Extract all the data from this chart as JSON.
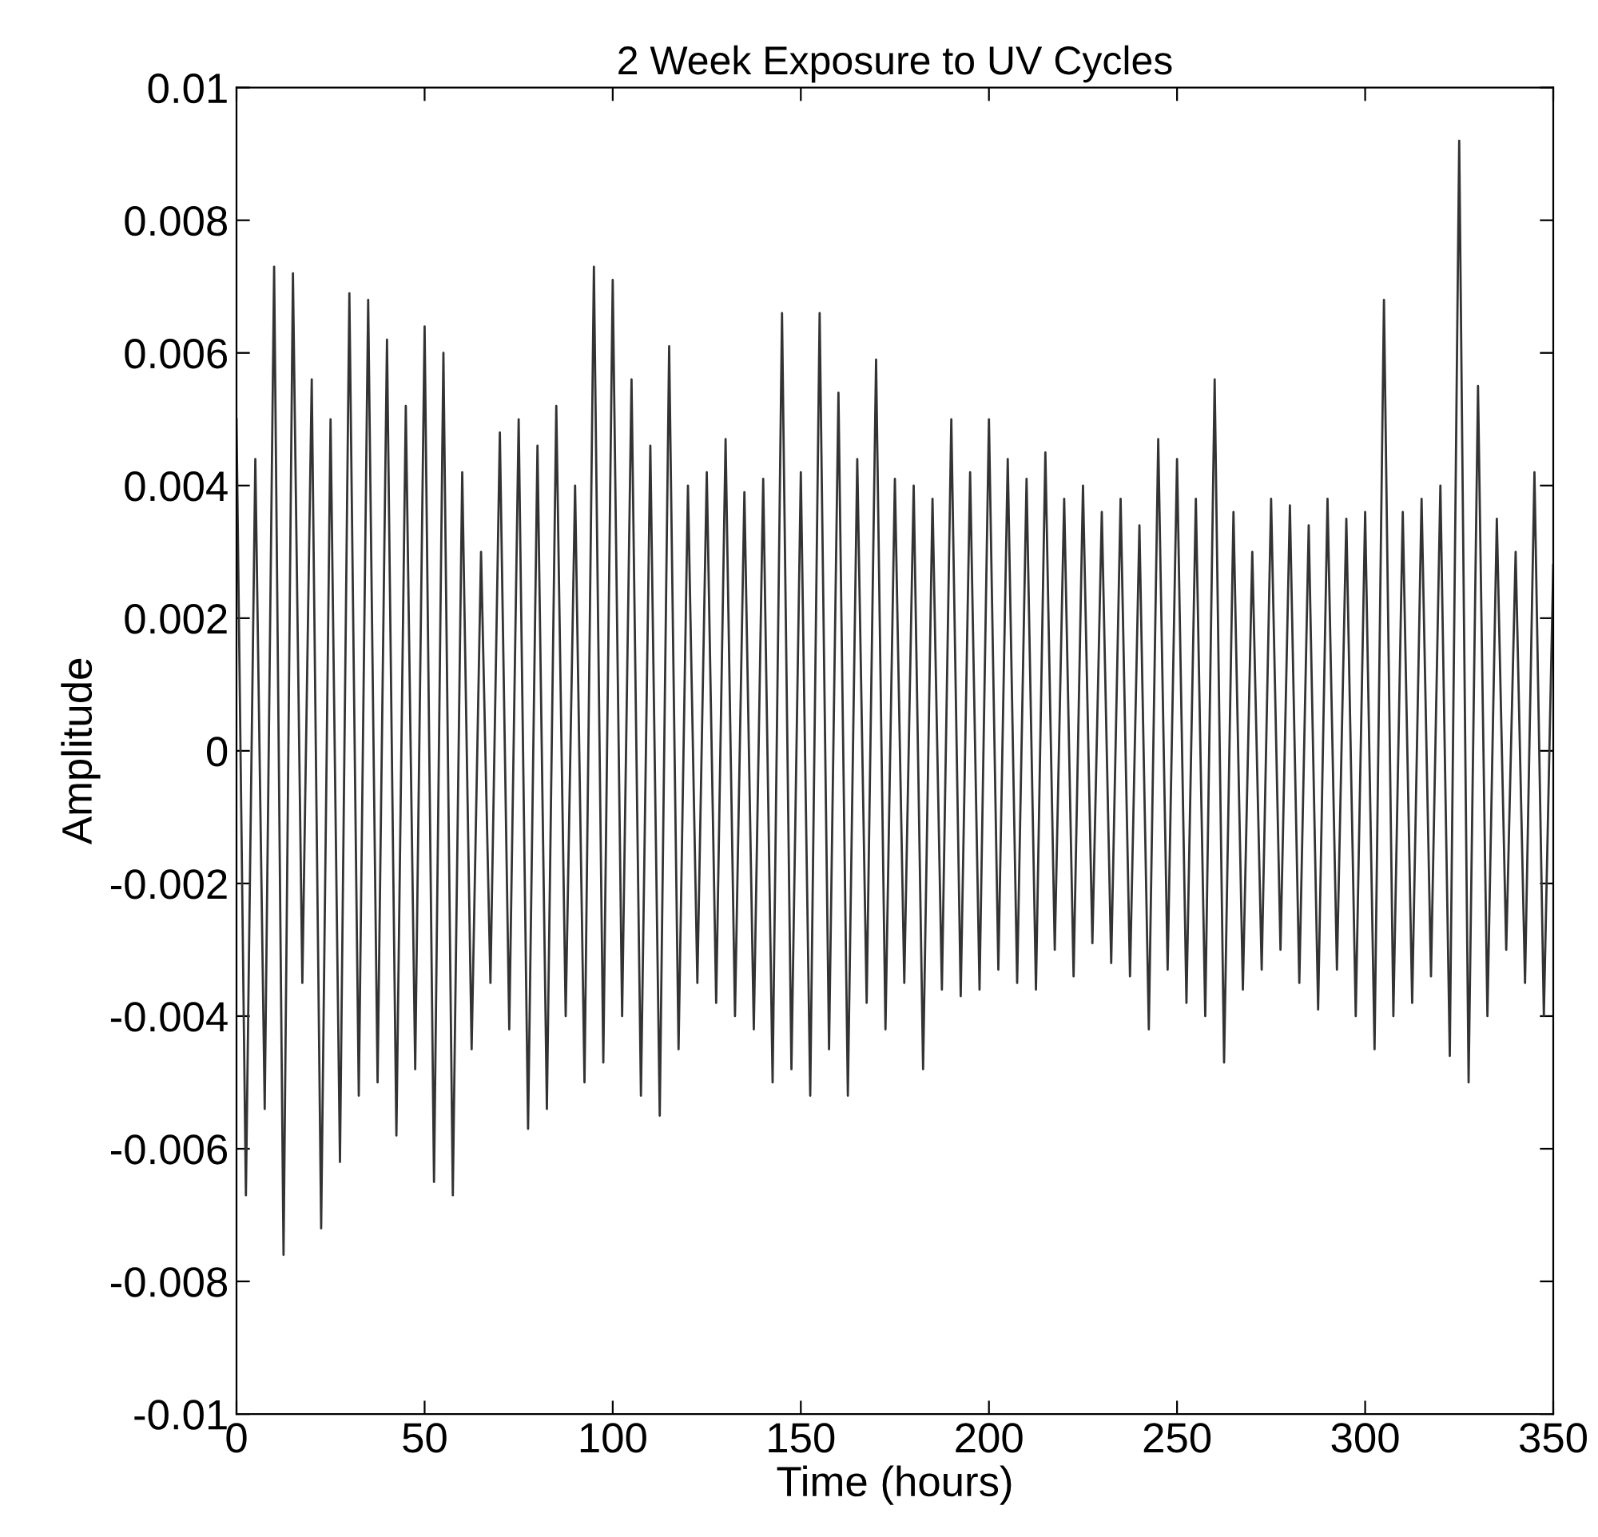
{
  "chart_data": {
    "type": "line",
    "title": "2 Week Exposure to UV Cycles",
    "xlabel": "Time (hours)",
    "ylabel": "Amplitude",
    "x": [
      0,
      2.5,
      5,
      7.5,
      10,
      12.5,
      15,
      17.5,
      20,
      22.5,
      25,
      27.5,
      30,
      32.5,
      35,
      37.5,
      40,
      42.5,
      45,
      47.5,
      50,
      52.5,
      55,
      57.5,
      60,
      62.5,
      65,
      67.5,
      70,
      72.5,
      75,
      77.5,
      80,
      82.5,
      85,
      87.5,
      90,
      92.5,
      95,
      97.5,
      100,
      102.5,
      105,
      107.5,
      110,
      112.5,
      115,
      117.5,
      120,
      122.5,
      125,
      127.5,
      130,
      132.5,
      135,
      137.5,
      140,
      142.5,
      145,
      147.5,
      150,
      152.5,
      155,
      157.5,
      160,
      162.5,
      165,
      167.5,
      170,
      172.5,
      175,
      177.5,
      180,
      182.5,
      185,
      187.5,
      190,
      192.5,
      195,
      197.5,
      200,
      202.5,
      205,
      207.5,
      210,
      212.5,
      215,
      217.5,
      220,
      222.5,
      225,
      227.5,
      230,
      232.5,
      235,
      237.5,
      240,
      242.5,
      245,
      247.5,
      250,
      252.5,
      255,
      257.5,
      260,
      262.5,
      265,
      267.5,
      270,
      272.5,
      275,
      277.5,
      280,
      282.5,
      285,
      287.5,
      290,
      292.5,
      295,
      297.5,
      300,
      302.5,
      305,
      307.5,
      310,
      312.5,
      315,
      317.5,
      320,
      322.5,
      325,
      327.5,
      330,
      332.5,
      335,
      337.5,
      340,
      342.5,
      345,
      347.5,
      350
    ],
    "series": [
      {
        "color": "#333333",
        "values": [
          0.005,
          -0.0067,
          0.0044,
          -0.0054,
          0.0073,
          -0.0076,
          0.0072,
          -0.0035,
          0.0056,
          -0.0072,
          0.005,
          -0.0062,
          0.0069,
          -0.0052,
          0.0068,
          -0.005,
          0.0062,
          -0.0058,
          0.0052,
          -0.0048,
          0.0064,
          -0.0065,
          0.006,
          -0.0067,
          0.0042,
          -0.0045,
          0.003,
          -0.0035,
          0.0048,
          -0.0042,
          0.005,
          -0.0057,
          0.0046,
          -0.0054,
          0.0052,
          -0.004,
          0.004,
          -0.005,
          0.0073,
          -0.0047,
          0.0071,
          -0.004,
          0.0056,
          -0.0052,
          0.0046,
          -0.0055,
          0.0061,
          -0.0045,
          0.004,
          -0.0035,
          0.0042,
          -0.0038,
          0.0047,
          -0.004,
          0.0039,
          -0.0042,
          0.0041,
          -0.005,
          0.0066,
          -0.0048,
          0.0042,
          -0.0052,
          0.0066,
          -0.0045,
          0.0054,
          -0.0052,
          0.0044,
          -0.0038,
          0.0059,
          -0.0042,
          0.0041,
          -0.0035,
          0.004,
          -0.0048,
          0.0038,
          -0.0036,
          0.005,
          -0.0037,
          0.0042,
          -0.0036,
          0.005,
          -0.0033,
          0.0044,
          -0.0035,
          0.0041,
          -0.0036,
          0.0045,
          -0.003,
          0.0038,
          -0.0034,
          0.004,
          -0.0029,
          0.0036,
          -0.0032,
          0.0038,
          -0.0034,
          0.0034,
          -0.0042,
          0.0047,
          -0.0033,
          0.0044,
          -0.0038,
          0.0038,
          -0.004,
          0.0056,
          -0.0047,
          0.0036,
          -0.0036,
          0.003,
          -0.0033,
          0.0038,
          -0.003,
          0.0037,
          -0.0035,
          0.0034,
          -0.0039,
          0.0038,
          -0.0033,
          0.0035,
          -0.004,
          0.0036,
          -0.0045,
          0.0068,
          -0.004,
          0.0036,
          -0.0038,
          0.0038,
          -0.0034,
          0.004,
          -0.0046,
          0.0092,
          -0.005,
          0.0055,
          -0.004,
          0.0035,
          -0.003,
          0.003,
          -0.0035,
          0.0042,
          -0.004,
          0.0028
        ]
      }
    ],
    "xlim": [
      0,
      350
    ],
    "xticks": [
      0,
      50,
      100,
      150,
      200,
      250,
      300,
      350
    ],
    "ylim": [
      -0.01,
      0.01
    ],
    "yticks": [
      {
        "value": -0.01,
        "label": "-0.01"
      },
      {
        "value": -0.008,
        "label": "-0.008"
      },
      {
        "value": -0.006,
        "label": "-0.006"
      },
      {
        "value": -0.004,
        "label": "-0.004"
      },
      {
        "value": -0.002,
        "label": "-0.002"
      },
      0,
      {
        "value": 0.002,
        "label": "0.002"
      },
      {
        "value": 0.004,
        "label": "0.004"
      },
      {
        "value": 0.006,
        "label": "0.006"
      },
      {
        "value": 0.008,
        "label": "0.008"
      },
      {
        "value": 0.01,
        "label": "0.01"
      }
    ],
    "grid": false,
    "legend": false,
    "marker": "none",
    "line_style": "solid"
  }
}
